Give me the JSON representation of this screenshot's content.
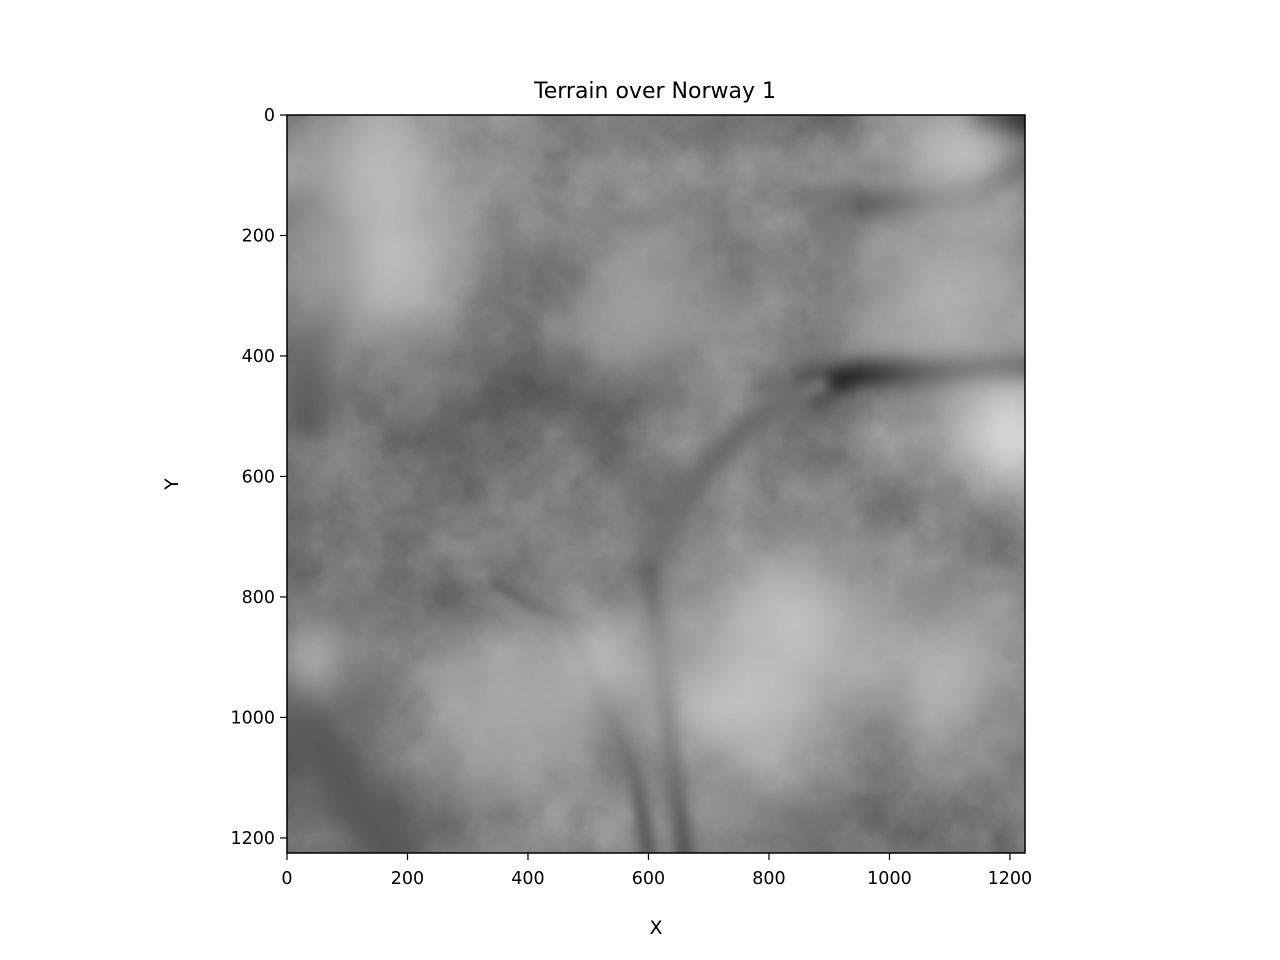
{
  "chart_data": {
    "type": "heatmap",
    "title": "Terrain over Norway 1",
    "xlabel": "X",
    "ylabel": "Y",
    "colormap": "gray",
    "xlim": [
      0,
      1225
    ],
    "ylim": [
      1225,
      0
    ],
    "x_ticks": [
      0,
      200,
      400,
      600,
      800,
      1000,
      1200
    ],
    "y_ticks": [
      0,
      200,
      400,
      600,
      800,
      1000,
      1200
    ],
    "grid": false,
    "features": [
      {
        "kind": "dark",
        "path": [
          [
            50,
            150
          ],
          [
            90,
            190
          ],
          [
            110,
            260
          ],
          [
            80,
            330
          ],
          [
            40,
            400
          ],
          [
            30,
            500
          ]
        ],
        "width": 28,
        "level": 0.35
      },
      {
        "kind": "dark",
        "path": [
          [
            880,
            450
          ],
          [
            950,
            430
          ],
          [
            1050,
            425
          ],
          [
            1150,
            420
          ],
          [
            1225,
            420
          ]
        ],
        "width": 20,
        "level": 0.05
      },
      {
        "kind": "dark",
        "path": [
          [
            960,
            150
          ],
          [
            1050,
            140
          ],
          [
            1150,
            120
          ],
          [
            1225,
            80
          ]
        ],
        "width": 22,
        "level": 0.3
      },
      {
        "kind": "dark",
        "path": [
          [
            1160,
            0
          ],
          [
            1225,
            10
          ]
        ],
        "width": 24,
        "level": 0.05
      },
      {
        "kind": "dark",
        "path": [
          [
            880,
            450
          ],
          [
            820,
            480
          ],
          [
            760,
            520
          ],
          [
            700,
            580
          ],
          [
            640,
            660
          ],
          [
            600,
            760
          ]
        ],
        "width": 18,
        "level": 0.42
      },
      {
        "kind": "dark",
        "path": [
          [
            600,
            760
          ],
          [
            620,
            900
          ],
          [
            640,
            1060
          ],
          [
            660,
            1225
          ]
        ],
        "width": 14,
        "level": 0.33
      },
      {
        "kind": "dark",
        "path": [
          [
            470,
            850
          ],
          [
            520,
            960
          ],
          [
            580,
            1100
          ],
          [
            600,
            1225
          ]
        ],
        "width": 12,
        "level": 0.36
      },
      {
        "kind": "dark",
        "path": [
          [
            0,
            950
          ],
          [
            60,
            1050
          ],
          [
            120,
            1150
          ],
          [
            180,
            1225
          ]
        ],
        "width": 40,
        "level": 0.34
      },
      {
        "kind": "dark",
        "path": [
          [
            350,
            780
          ],
          [
            420,
            820
          ],
          [
            500,
            850
          ]
        ],
        "width": 10,
        "level": 0.38
      },
      {
        "kind": "bright",
        "center": [
          170,
          260
        ],
        "radius": 110,
        "level": 0.8
      },
      {
        "kind": "bright",
        "center": [
          140,
          80
        ],
        "radius": 90,
        "level": 0.78
      },
      {
        "kind": "bright",
        "center": [
          1200,
          520
        ],
        "radius": 80,
        "level": 0.95
      },
      {
        "kind": "bright",
        "center": [
          760,
          960
        ],
        "radius": 120,
        "level": 0.82
      },
      {
        "kind": "bright",
        "center": [
          850,
          830
        ],
        "radius": 90,
        "level": 0.8
      },
      {
        "kind": "bright",
        "center": [
          1100,
          320
        ],
        "radius": 120,
        "level": 0.72
      },
      {
        "kind": "bright",
        "center": [
          1110,
          60
        ],
        "radius": 80,
        "level": 0.8
      },
      {
        "kind": "bright",
        "center": [
          520,
          900
        ],
        "radius": 70,
        "level": 0.78
      },
      {
        "kind": "bright",
        "center": [
          360,
          1000
        ],
        "radius": 100,
        "level": 0.72
      },
      {
        "kind": "bright",
        "center": [
          1100,
          920
        ],
        "radius": 90,
        "level": 0.76
      },
      {
        "kind": "bright",
        "center": [
          600,
          320
        ],
        "radius": 90,
        "level": 0.68
      },
      {
        "kind": "bright",
        "center": [
          40,
          900
        ],
        "radius": 50,
        "level": 0.72
      }
    ]
  }
}
